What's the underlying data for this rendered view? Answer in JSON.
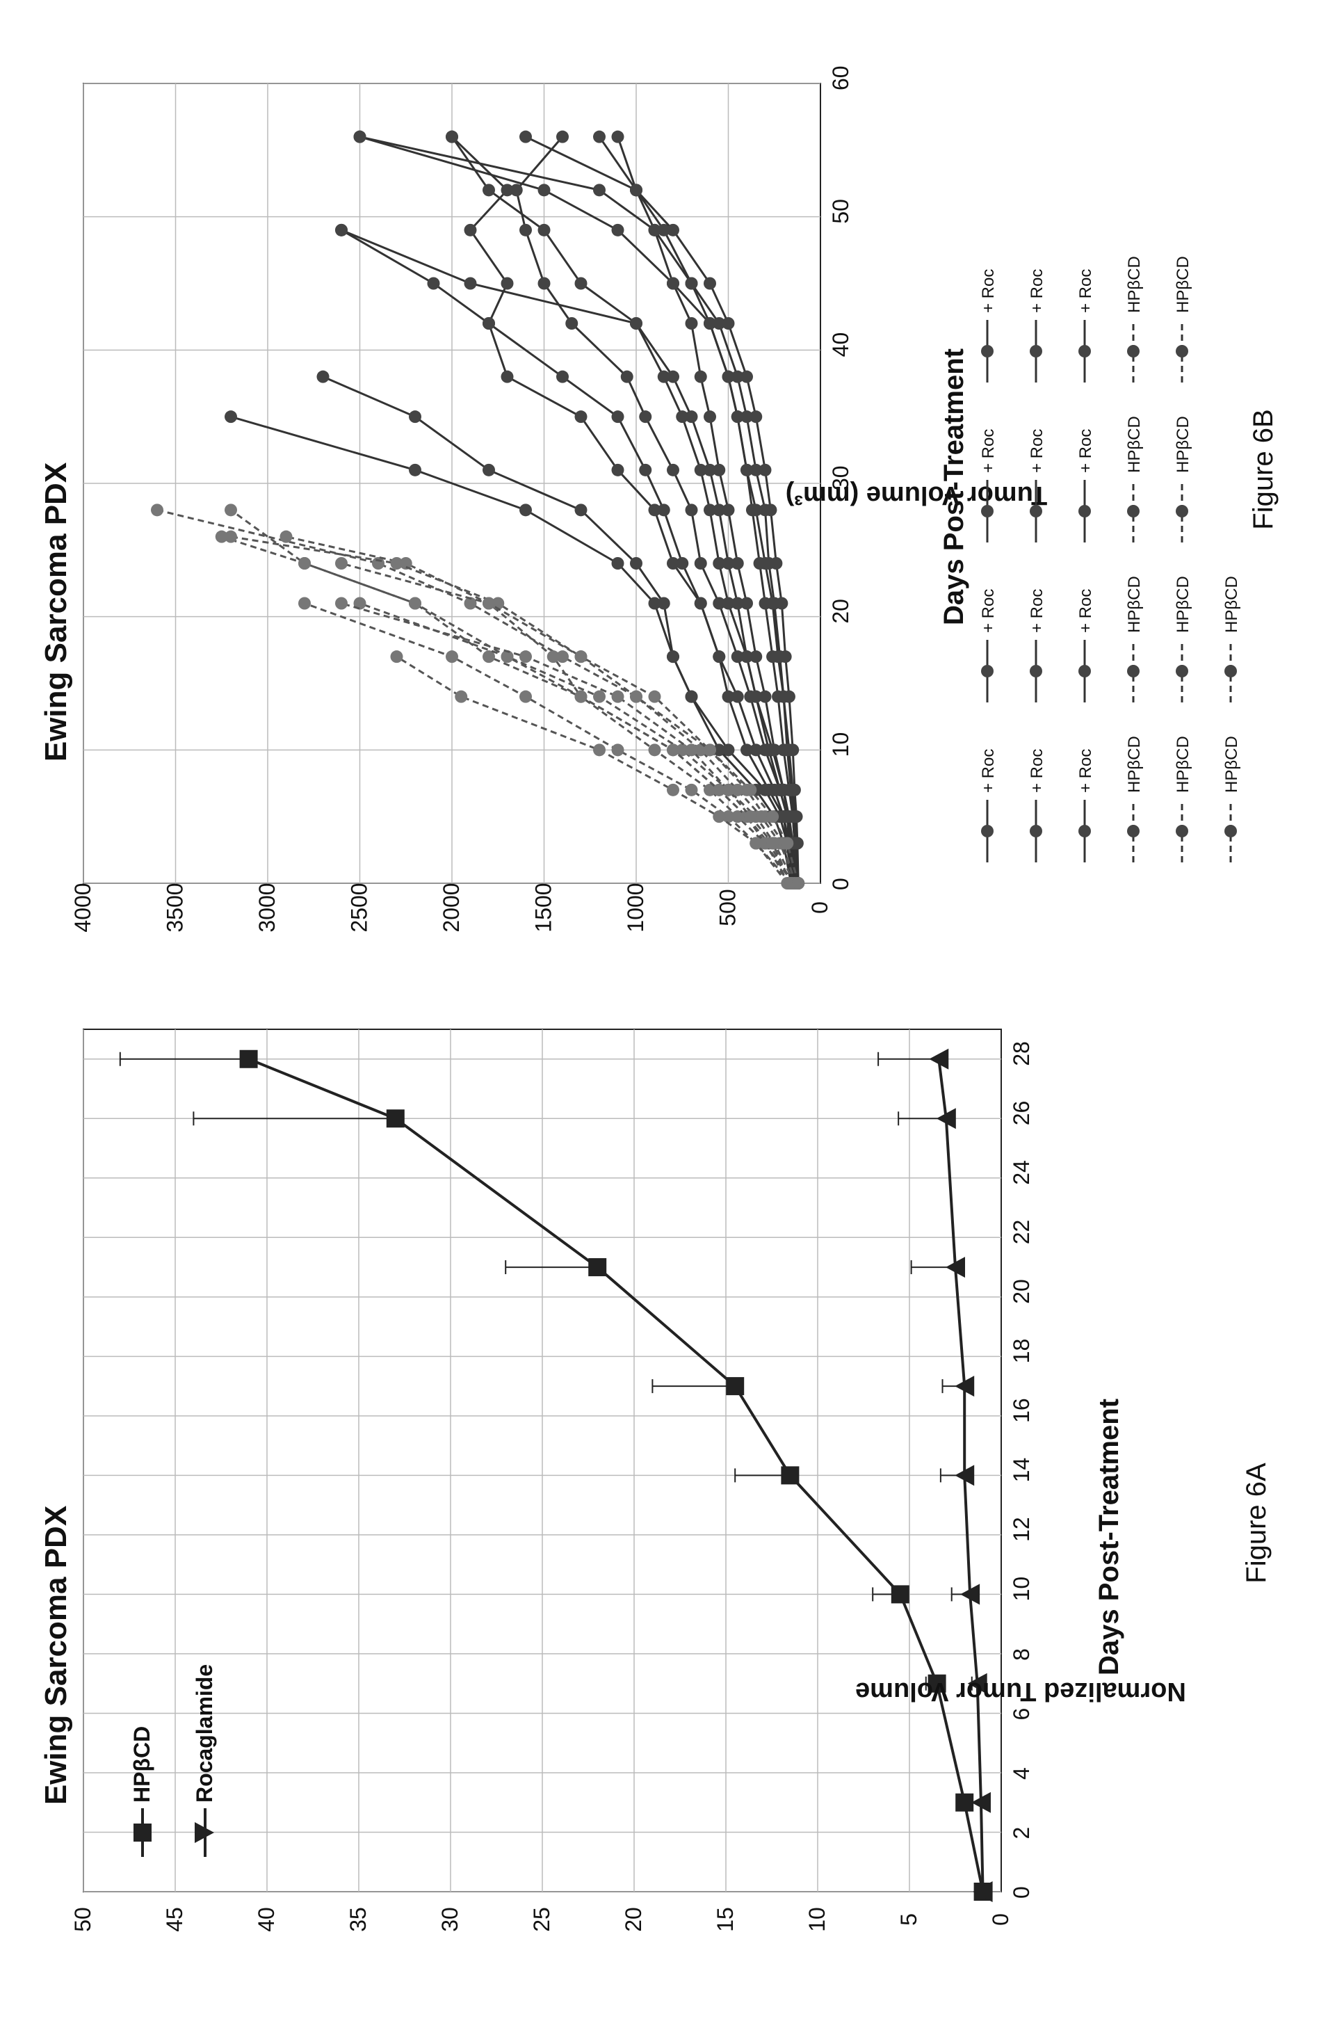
{
  "chart_data": [
    {
      "type": "line",
      "figure_label": "Figure 6A",
      "title": "Ewing Sarcoma PDX",
      "xlabel": "Days Post-Treatment",
      "ylabel": "Normalized Tumor Volume",
      "xlim": [
        0,
        29
      ],
      "ylim": [
        0,
        50
      ],
      "xticks": [
        "0",
        "2",
        "4",
        "6",
        "8",
        "10",
        "12",
        "14",
        "16",
        "18",
        "20",
        "22",
        "24",
        "26",
        "28"
      ],
      "yticks": [
        "0",
        "5",
        "10",
        "15",
        "20",
        "25",
        "30",
        "35",
        "40",
        "45",
        "50"
      ],
      "grid": true,
      "legend_position": "top-left",
      "series": [
        {
          "name": "HPβCD",
          "marker": "square",
          "x": [
            0,
            3,
            7,
            10,
            14,
            17,
            21,
            26,
            28
          ],
          "y": [
            1.0,
            2.0,
            3.5,
            5.5,
            11.5,
            14.5,
            22.0,
            33.0,
            41.0
          ],
          "err": [
            0,
            0,
            0.6,
            1.5,
            3.0,
            4.5,
            5.0,
            11.0,
            7.0
          ]
        },
        {
          "name": "Rocaglamide",
          "marker": "triangle",
          "x": [
            0,
            3,
            7,
            10,
            14,
            17,
            21,
            26,
            28
          ],
          "y": [
            1.0,
            1.1,
            1.3,
            1.7,
            2.0,
            2.0,
            2.5,
            3.0,
            3.4
          ],
          "err": [
            0,
            0,
            0.3,
            1.0,
            1.3,
            1.2,
            2.4,
            2.6,
            3.3
          ]
        }
      ]
    },
    {
      "type": "line",
      "figure_label": "Figure 6B",
      "title": "Ewing Sarcoma PDX",
      "xlabel": "Days Post-Treatment",
      "ylabel": "Tumor Volume (mm³)",
      "xlim": [
        0,
        60
      ],
      "ylim": [
        0,
        4000
      ],
      "xticks": [
        "0",
        "10",
        "20",
        "30",
        "40",
        "50",
        "60"
      ],
      "yticks": [
        "0",
        "500",
        "1000",
        "1500",
        "2000",
        "2500",
        "3000",
        "3500",
        "4000"
      ],
      "grid": true,
      "legend_position": "bottom",
      "legend_labels": [
        "+ Roc",
        "+ Roc",
        "+ Roc",
        "+ Roc",
        "+ Roc",
        "+ Roc",
        "+ Roc",
        "+ Roc",
        "+ Roc",
        "+ Roc",
        "+ Roc",
        "+ Roc",
        "HPβCD",
        "HPβCD",
        "HPβCD",
        "HPβCD",
        "HPβCD",
        "HPβCD",
        "HPβCD",
        "HPβCD",
        "HPβCD",
        "HPβCD"
      ],
      "series": [
        {
          "name": "+ Roc",
          "x": [
            0,
            3,
            5,
            7,
            10,
            14,
            17,
            21,
            24,
            28,
            31,
            35,
            38,
            42,
            45,
            49,
            52,
            56
          ],
          "y": [
            150,
            170,
            180,
            220,
            300,
            380,
            450,
            550,
            650,
            700,
            800,
            950,
            1050,
            1350,
            1500,
            1600,
            1650,
            1400
          ]
        },
        {
          "name": "+ Roc",
          "x": [
            0,
            3,
            5,
            7,
            10,
            14,
            17,
            21,
            24,
            28,
            31,
            35,
            38,
            42,
            45,
            49,
            52,
            56
          ],
          "y": [
            160,
            180,
            200,
            280,
            400,
            500,
            550,
            650,
            800,
            900,
            1100,
            1300,
            1700,
            1800,
            1700,
            1900,
            1700,
            2000
          ]
        },
        {
          "name": "+ Roc",
          "x": [
            0,
            3,
            5,
            7,
            10,
            14,
            17,
            21,
            24,
            28,
            31,
            35,
            38,
            42,
            45,
            49,
            52,
            56
          ],
          "y": [
            140,
            150,
            170,
            200,
            260,
            350,
            400,
            500,
            550,
            600,
            650,
            750,
            850,
            1000,
            1300,
            1500,
            1800,
            2000
          ]
        },
        {
          "name": "+ Roc",
          "x": [
            0,
            3,
            5,
            7,
            10,
            14,
            17,
            21,
            24,
            28,
            31,
            35
          ],
          "y": [
            150,
            180,
            220,
            300,
            500,
            700,
            800,
            900,
            1100,
            1600,
            2200,
            3200
          ]
        },
        {
          "name": "+ Roc",
          "x": [
            0,
            3,
            5,
            7,
            10,
            14,
            17,
            21,
            24,
            28,
            31,
            35,
            38
          ],
          "y": [
            160,
            200,
            250,
            350,
            550,
            700,
            800,
            850,
            1000,
            1300,
            1800,
            2200,
            2700
          ]
        },
        {
          "name": "+ Roc",
          "x": [
            0,
            3,
            5,
            7,
            10,
            14,
            17,
            21,
            24,
            28,
            31,
            35,
            38,
            42,
            45,
            49
          ],
          "y": [
            140,
            160,
            180,
            220,
            280,
            350,
            400,
            450,
            500,
            550,
            600,
            700,
            800,
            1000,
            1900,
            2600
          ]
        },
        {
          "name": "+ Roc",
          "x": [
            0,
            3,
            5,
            7,
            10,
            14,
            17,
            21,
            24,
            28,
            31,
            35,
            38,
            42,
            45,
            49,
            52,
            56
          ],
          "y": [
            130,
            140,
            150,
            170,
            200,
            230,
            260,
            300,
            330,
            370,
            400,
            450,
            500,
            600,
            800,
            1100,
            1500,
            2500
          ]
        },
        {
          "name": "+ Roc",
          "x": [
            0,
            3,
            5,
            7,
            10,
            14,
            17,
            21,
            24,
            28,
            31,
            35,
            38,
            42,
            45,
            49,
            52,
            56
          ],
          "y": [
            120,
            130,
            140,
            150,
            170,
            200,
            220,
            250,
            280,
            300,
            350,
            400,
            450,
            550,
            700,
            900,
            1200,
            2500
          ]
        },
        {
          "name": "+ Roc",
          "x": [
            0,
            3,
            5,
            7,
            10,
            14,
            17,
            21,
            24,
            28,
            31,
            35,
            38,
            42,
            45,
            49,
            52,
            56
          ],
          "y": [
            150,
            160,
            180,
            200,
            250,
            300,
            350,
            400,
            450,
            500,
            550,
            600,
            650,
            700,
            800,
            900,
            1000,
            1100
          ]
        },
        {
          "name": "+ Roc",
          "x": [
            0,
            3,
            5,
            7,
            10,
            14,
            17,
            21,
            24,
            28,
            31,
            35,
            38,
            42,
            45,
            49,
            52,
            56
          ],
          "y": [
            130,
            140,
            150,
            160,
            180,
            200,
            230,
            260,
            300,
            350,
            400,
            450,
            500,
            600,
            700,
            850,
            1000,
            1200
          ]
        },
        {
          "name": "+ Roc",
          "x": [
            0,
            3,
            5,
            7,
            10,
            14,
            17,
            21,
            24,
            28,
            31,
            35,
            38,
            42,
            45,
            49
          ],
          "y": [
            150,
            170,
            200,
            250,
            350,
            450,
            550,
            650,
            750,
            850,
            950,
            1100,
            1400,
            1800,
            2100,
            2600
          ]
        },
        {
          "name": "+ Roc",
          "x": [
            0,
            3,
            5,
            7,
            10,
            14,
            17,
            21,
            24,
            28,
            31,
            35,
            38,
            42,
            45,
            49,
            52,
            56
          ],
          "y": [
            120,
            125,
            130,
            140,
            150,
            170,
            190,
            210,
            240,
            270,
            300,
            350,
            400,
            500,
            600,
            800,
            1000,
            1600
          ]
        },
        {
          "name": "HPβCD",
          "dashed": true,
          "x": [
            0,
            3,
            5,
            7,
            10,
            14,
            17,
            21
          ],
          "y": [
            180,
            350,
            500,
            700,
            1100,
            1600,
            2000,
            2800
          ]
        },
        {
          "name": "HPβCD",
          "dashed": true,
          "x": [
            0,
            3,
            5,
            7,
            10,
            14,
            17,
            21,
            24,
            28
          ],
          "y": [
            170,
            300,
            450,
            600,
            900,
            1300,
            1700,
            2200,
            2800,
            3200
          ]
        },
        {
          "name": "HPβCD",
          "dashed": true,
          "x": [
            0,
            3,
            5,
            7,
            10,
            14,
            17
          ],
          "y": [
            160,
            350,
            550,
            800,
            1200,
            1950,
            2300
          ]
        },
        {
          "name": "HPβCD",
          "dashed": true,
          "x": [
            0,
            3,
            5,
            7,
            10,
            14,
            17,
            21,
            24,
            26
          ],
          "y": [
            150,
            280,
            400,
            550,
            800,
            1300,
            1800,
            2200,
            2800,
            3250
          ]
        },
        {
          "name": "HPβCD",
          "dashed": true,
          "x": [
            0,
            3,
            5,
            7,
            10,
            14,
            17,
            21
          ],
          "y": [
            140,
            250,
            350,
            500,
            750,
            1200,
            1700,
            2500
          ]
        },
        {
          "name": "HPβCD",
          "dashed": true,
          "x": [
            0,
            3,
            5,
            7,
            10,
            14,
            17,
            21,
            24,
            28
          ],
          "y": [
            130,
            220,
            320,
            450,
            650,
            1000,
            1400,
            1900,
            2400,
            3600
          ]
        },
        {
          "name": "HPβCD",
          "dashed": true,
          "x": [
            0,
            3,
            5,
            7,
            10,
            14,
            17,
            21,
            24,
            26
          ],
          "y": [
            150,
            300,
            400,
            550,
            800,
            1300,
            1450,
            1800,
            2250,
            2900
          ]
        },
        {
          "name": "HPβCD",
          "dashed": true,
          "x": [
            0,
            3,
            5,
            7,
            10,
            14,
            17,
            21,
            24,
            26
          ],
          "y": [
            140,
            200,
            300,
            400,
            600,
            1000,
            1300,
            1750,
            2300,
            3200
          ]
        },
        {
          "name": "HPβCD",
          "dashed": true,
          "x": [
            0,
            3,
            5,
            7,
            10,
            14,
            17,
            21
          ],
          "y": [
            160,
            260,
            380,
            500,
            700,
            1100,
            1600,
            2600
          ]
        },
        {
          "name": "HPβCD",
          "dashed": true,
          "x": [
            0,
            3,
            5,
            7,
            10,
            14,
            17,
            21,
            24
          ],
          "y": [
            120,
            180,
            260,
            380,
            600,
            900,
            1300,
            1800,
            2600
          ]
        }
      ]
    }
  ]
}
